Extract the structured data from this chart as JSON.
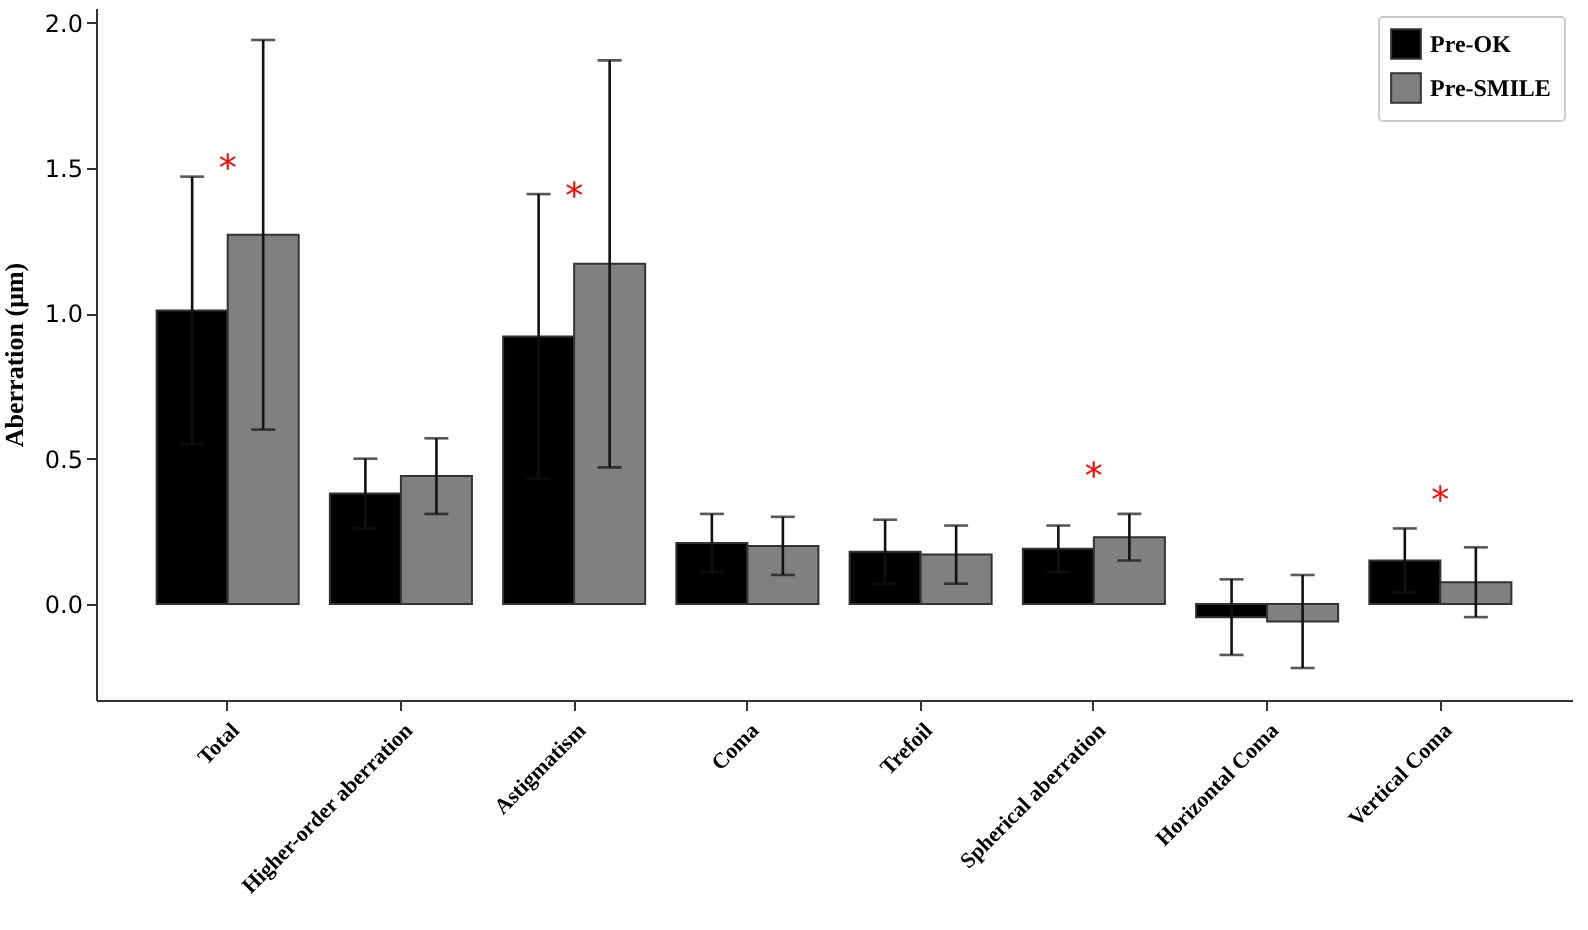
{
  "chart_data": {
    "type": "bar",
    "ylabel": "Aberration (μm)",
    "categories": [
      "Total",
      "Higher-order aberration",
      "Astigmatism",
      "Coma",
      "Trefoil",
      "Spherical aberration",
      "Horizontal Coma",
      "Vertical Coma"
    ],
    "series": [
      {
        "name": "Pre-OK",
        "color": "#000000",
        "values": [
          1.01,
          0.38,
          0.92,
          0.21,
          0.18,
          0.19,
          -0.045,
          0.15
        ],
        "errors": [
          0.46,
          0.12,
          0.49,
          0.1,
          0.11,
          0.08,
          0.13,
          0.11
        ]
      },
      {
        "name": "Pre-SMILE",
        "color": "#808080",
        "values": [
          1.27,
          0.44,
          1.17,
          0.2,
          0.17,
          0.23,
          -0.06,
          0.075
        ],
        "errors": [
          0.67,
          0.13,
          0.7,
          0.1,
          0.1,
          0.08,
          0.16,
          0.12
        ]
      }
    ],
    "ylim": [
      -0.33,
      2.05
    ],
    "yticks": [
      {
        "value": 0,
        "label": "0.0"
      },
      {
        "value": 0.5,
        "label": "0.5"
      },
      {
        "value": 1,
        "label": "1.0"
      },
      {
        "value": 1.5,
        "label": "1.5"
      },
      {
        "value": 2,
        "label": "2.0"
      }
    ],
    "annotations": [
      "*",
      "*",
      "*",
      "*"
    ],
    "legend": "top right",
    "grid": false
  }
}
